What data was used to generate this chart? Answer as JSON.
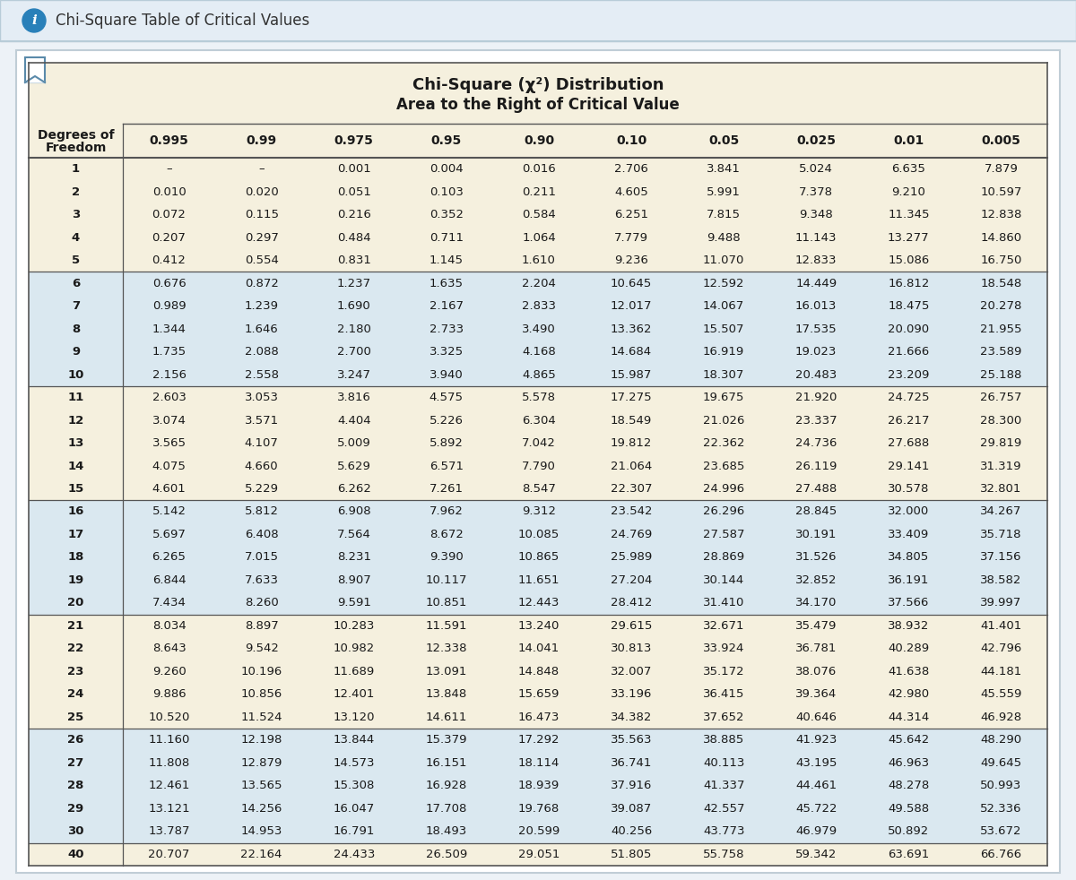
{
  "title_line1": "Chi-Square (χ²) Distribution",
  "title_line2": "Area to the Right of Critical Value",
  "col_headers": [
    "0.995",
    "0.99",
    "0.975",
    "0.95",
    "0.90",
    "0.10",
    "0.05",
    "0.025",
    "0.01",
    "0.005"
  ],
  "rows": [
    [
      "1",
      "–",
      "–",
      "0.001",
      "0.004",
      "0.016",
      "2.706",
      "3.841",
      "5.024",
      "6.635",
      "7.879"
    ],
    [
      "2",
      "0.010",
      "0.020",
      "0.051",
      "0.103",
      "0.211",
      "4.605",
      "5.991",
      "7.378",
      "9.210",
      "10.597"
    ],
    [
      "3",
      "0.072",
      "0.115",
      "0.216",
      "0.352",
      "0.584",
      "6.251",
      "7.815",
      "9.348",
      "11.345",
      "12.838"
    ],
    [
      "4",
      "0.207",
      "0.297",
      "0.484",
      "0.711",
      "1.064",
      "7.779",
      "9.488",
      "11.143",
      "13.277",
      "14.860"
    ],
    [
      "5",
      "0.412",
      "0.554",
      "0.831",
      "1.145",
      "1.610",
      "9.236",
      "11.070",
      "12.833",
      "15.086",
      "16.750"
    ],
    [
      "6",
      "0.676",
      "0.872",
      "1.237",
      "1.635",
      "2.204",
      "10.645",
      "12.592",
      "14.449",
      "16.812",
      "18.548"
    ],
    [
      "7",
      "0.989",
      "1.239",
      "1.690",
      "2.167",
      "2.833",
      "12.017",
      "14.067",
      "16.013",
      "18.475",
      "20.278"
    ],
    [
      "8",
      "1.344",
      "1.646",
      "2.180",
      "2.733",
      "3.490",
      "13.362",
      "15.507",
      "17.535",
      "20.090",
      "21.955"
    ],
    [
      "9",
      "1.735",
      "2.088",
      "2.700",
      "3.325",
      "4.168",
      "14.684",
      "16.919",
      "19.023",
      "21.666",
      "23.589"
    ],
    [
      "10",
      "2.156",
      "2.558",
      "3.247",
      "3.940",
      "4.865",
      "15.987",
      "18.307",
      "20.483",
      "23.209",
      "25.188"
    ],
    [
      "11",
      "2.603",
      "3.053",
      "3.816",
      "4.575",
      "5.578",
      "17.275",
      "19.675",
      "21.920",
      "24.725",
      "26.757"
    ],
    [
      "12",
      "3.074",
      "3.571",
      "4.404",
      "5.226",
      "6.304",
      "18.549",
      "21.026",
      "23.337",
      "26.217",
      "28.300"
    ],
    [
      "13",
      "3.565",
      "4.107",
      "5.009",
      "5.892",
      "7.042",
      "19.812",
      "22.362",
      "24.736",
      "27.688",
      "29.819"
    ],
    [
      "14",
      "4.075",
      "4.660",
      "5.629",
      "6.571",
      "7.790",
      "21.064",
      "23.685",
      "26.119",
      "29.141",
      "31.319"
    ],
    [
      "15",
      "4.601",
      "5.229",
      "6.262",
      "7.261",
      "8.547",
      "22.307",
      "24.996",
      "27.488",
      "30.578",
      "32.801"
    ],
    [
      "16",
      "5.142",
      "5.812",
      "6.908",
      "7.962",
      "9.312",
      "23.542",
      "26.296",
      "28.845",
      "32.000",
      "34.267"
    ],
    [
      "17",
      "5.697",
      "6.408",
      "7.564",
      "8.672",
      "10.085",
      "24.769",
      "27.587",
      "30.191",
      "33.409",
      "35.718"
    ],
    [
      "18",
      "6.265",
      "7.015",
      "8.231",
      "9.390",
      "10.865",
      "25.989",
      "28.869",
      "31.526",
      "34.805",
      "37.156"
    ],
    [
      "19",
      "6.844",
      "7.633",
      "8.907",
      "10.117",
      "11.651",
      "27.204",
      "30.144",
      "32.852",
      "36.191",
      "38.582"
    ],
    [
      "20",
      "7.434",
      "8.260",
      "9.591",
      "10.851",
      "12.443",
      "28.412",
      "31.410",
      "34.170",
      "37.566",
      "39.997"
    ],
    [
      "21",
      "8.034",
      "8.897",
      "10.283",
      "11.591",
      "13.240",
      "29.615",
      "32.671",
      "35.479",
      "38.932",
      "41.401"
    ],
    [
      "22",
      "8.643",
      "9.542",
      "10.982",
      "12.338",
      "14.041",
      "30.813",
      "33.924",
      "36.781",
      "40.289",
      "42.796"
    ],
    [
      "23",
      "9.260",
      "10.196",
      "11.689",
      "13.091",
      "14.848",
      "32.007",
      "35.172",
      "38.076",
      "41.638",
      "44.181"
    ],
    [
      "24",
      "9.886",
      "10.856",
      "12.401",
      "13.848",
      "15.659",
      "33.196",
      "36.415",
      "39.364",
      "42.980",
      "45.559"
    ],
    [
      "25",
      "10.520",
      "11.524",
      "13.120",
      "14.611",
      "16.473",
      "34.382",
      "37.652",
      "40.646",
      "44.314",
      "46.928"
    ],
    [
      "26",
      "11.160",
      "12.198",
      "13.844",
      "15.379",
      "17.292",
      "35.563",
      "38.885",
      "41.923",
      "45.642",
      "48.290"
    ],
    [
      "27",
      "11.808",
      "12.879",
      "14.573",
      "16.151",
      "18.114",
      "36.741",
      "40.113",
      "43.195",
      "46.963",
      "49.645"
    ],
    [
      "28",
      "12.461",
      "13.565",
      "15.308",
      "16.928",
      "18.939",
      "37.916",
      "41.337",
      "44.461",
      "48.278",
      "50.993"
    ],
    [
      "29",
      "13.121",
      "14.256",
      "16.047",
      "17.708",
      "19.768",
      "39.087",
      "42.557",
      "45.722",
      "49.588",
      "52.336"
    ],
    [
      "30",
      "13.787",
      "14.953",
      "16.791",
      "18.493",
      "20.599",
      "40.256",
      "43.773",
      "46.979",
      "50.892",
      "53.672"
    ],
    [
      "40",
      "20.707",
      "22.164",
      "24.433",
      "26.509",
      "29.051",
      "51.805",
      "55.758",
      "59.342",
      "63.691",
      "66.766"
    ]
  ],
  "bg_color_cream": "#f5f0de",
  "bg_color_blue": "#dae8f0",
  "top_bar_color": "#e4edf5",
  "outer_bg": "#edf2f7",
  "header_bg": "#f5f0de",
  "text_dark": "#1a1a1a",
  "line_color": "#555555",
  "border_color": "#c0cdd6"
}
